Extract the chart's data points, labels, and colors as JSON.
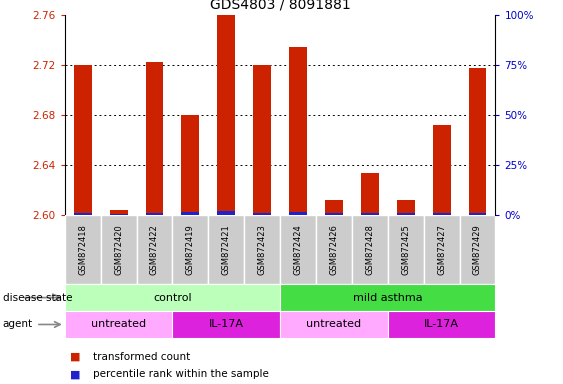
{
  "title": "GDS4803 / 8091881",
  "samples": [
    "GSM872418",
    "GSM872420",
    "GSM872422",
    "GSM872419",
    "GSM872421",
    "GSM872423",
    "GSM872424",
    "GSM872426",
    "GSM872428",
    "GSM872425",
    "GSM872427",
    "GSM872429"
  ],
  "transformed_count": [
    2.72,
    2.604,
    2.723,
    2.68,
    2.76,
    2.72,
    2.735,
    2.612,
    2.634,
    2.612,
    2.672,
    2.718
  ],
  "percentile_rank": [
    2.0,
    1.0,
    2.0,
    2.5,
    3.0,
    2.0,
    2.5,
    1.5,
    2.0,
    1.5,
    2.0,
    2.0
  ],
  "ylim": [
    2.6,
    2.76
  ],
  "yticks": [
    2.6,
    2.64,
    2.68,
    2.72,
    2.76
  ],
  "y2ticks_vals": [
    0,
    25,
    50,
    75,
    100
  ],
  "y2ticks_labels": [
    "0%",
    "25%",
    "50%",
    "75%",
    "100%"
  ],
  "bar_color_red": "#cc2200",
  "bar_color_blue": "#2222cc",
  "disease_state_groups": [
    {
      "label": "control",
      "start": 0,
      "end": 6,
      "color": "#bbffbb"
    },
    {
      "label": "mild asthma",
      "start": 6,
      "end": 12,
      "color": "#44dd44"
    }
  ],
  "agent_groups": [
    {
      "label": "untreated",
      "start": 0,
      "end": 3,
      "color": "#ffaaff"
    },
    {
      "label": "IL-17A",
      "start": 3,
      "end": 6,
      "color": "#dd22dd"
    },
    {
      "label": "untreated",
      "start": 6,
      "end": 9,
      "color": "#ffaaff"
    },
    {
      "label": "IL-17A",
      "start": 9,
      "end": 12,
      "color": "#dd22dd"
    }
  ],
  "bar_width": 0.5,
  "background_color": "#ffffff",
  "tick_label_color": "#cc2200",
  "right_tick_color": "#0000cc",
  "title_fontsize": 10,
  "axis_fontsize": 7.5,
  "sample_fontsize": 6,
  "row_fontsize": 8,
  "legend_fontsize": 7.5
}
